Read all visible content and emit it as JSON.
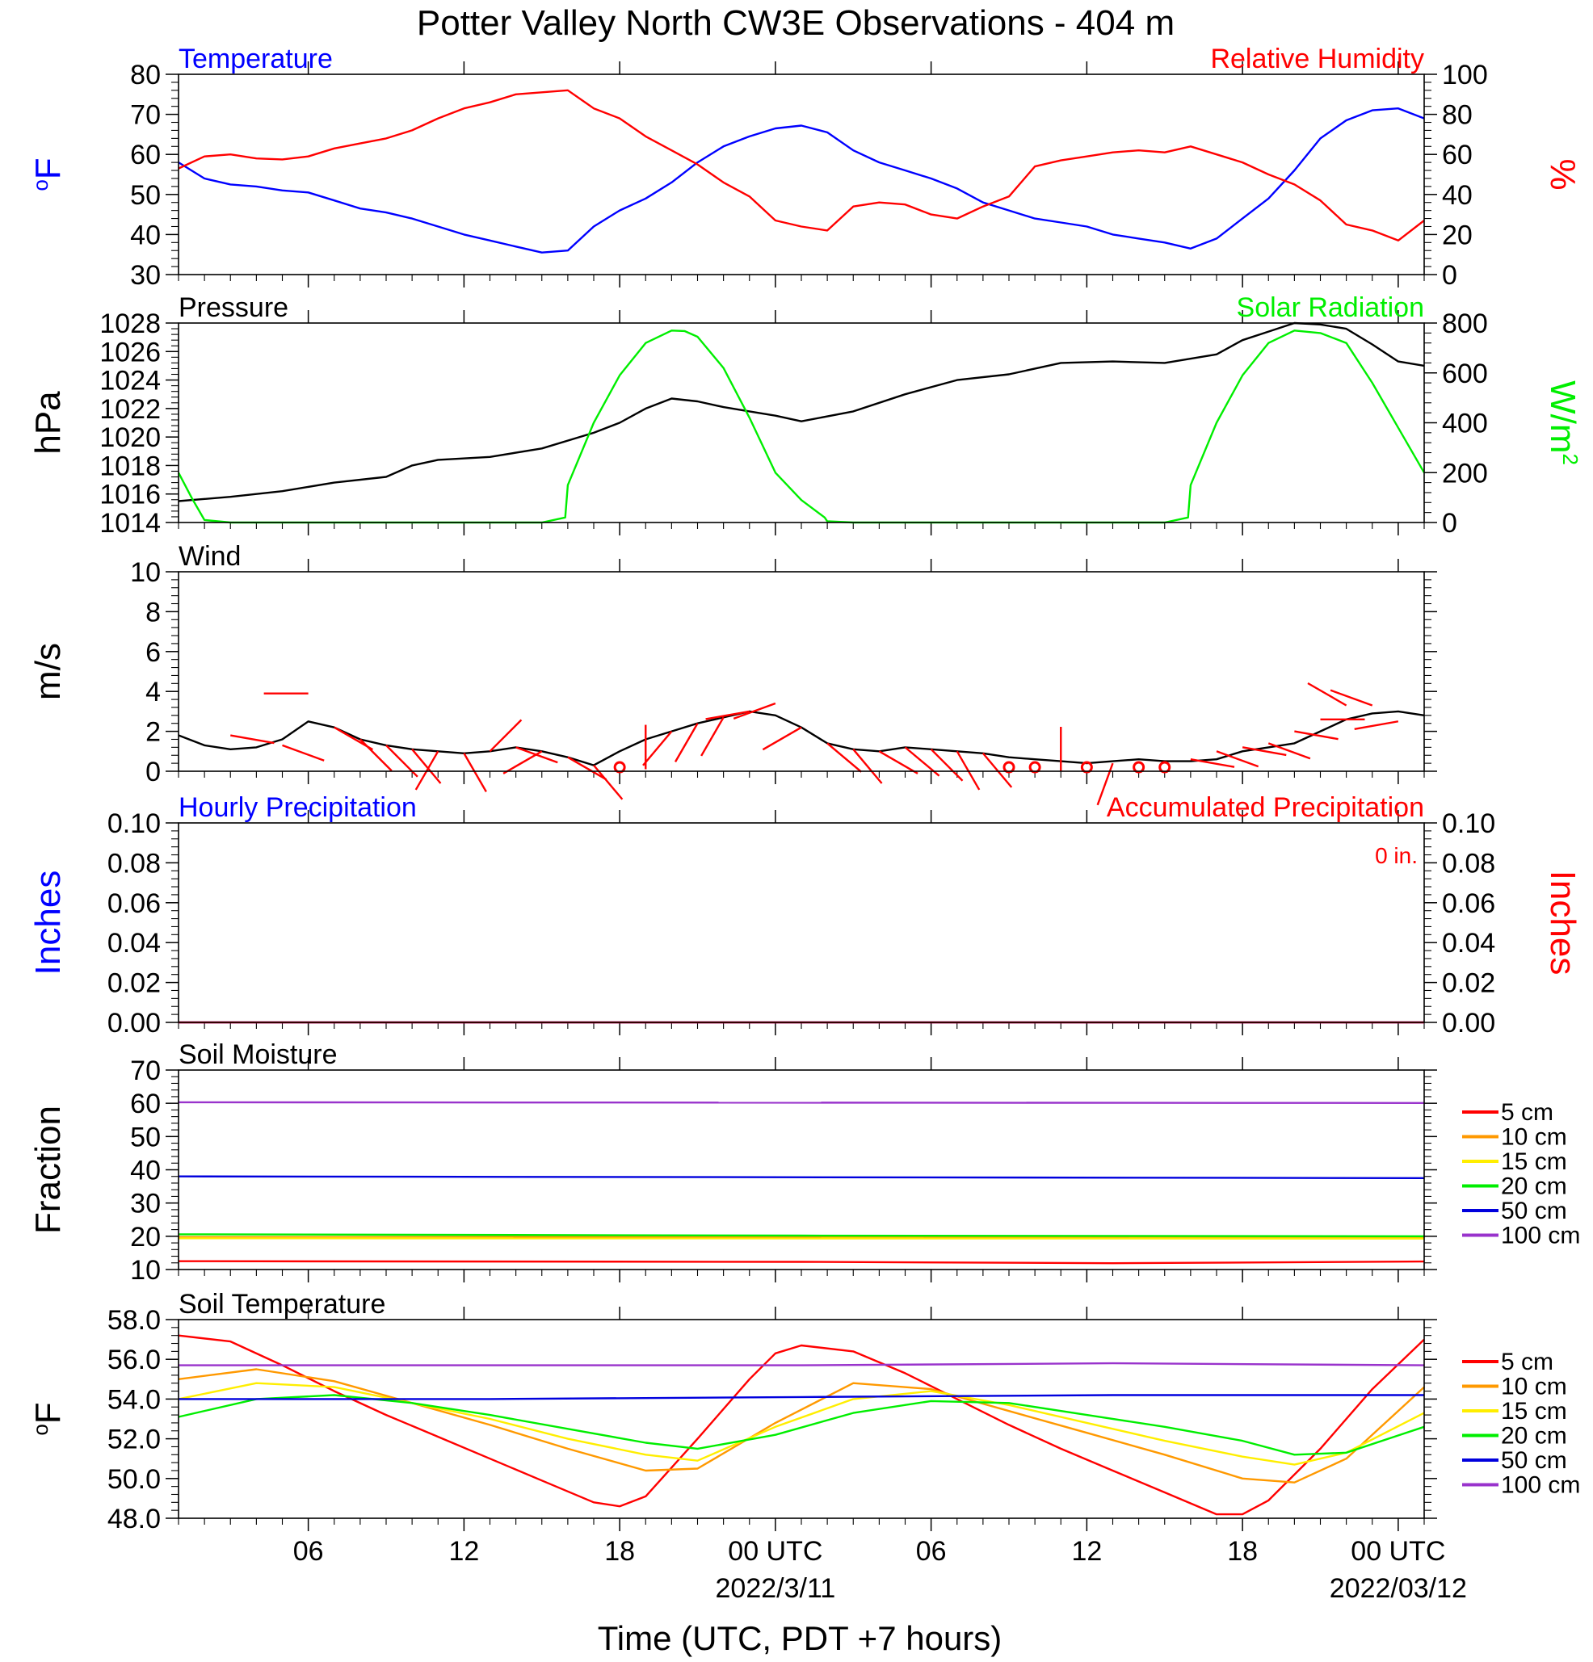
{
  "title": "Potter Valley North CW3E Observations - 404 m",
  "x_axis": {
    "label": "Time (UTC, PDT +7 hours)",
    "range_hours": [
      0,
      48
    ],
    "tick_hours": [
      5,
      11,
      17,
      23,
      29,
      35,
      41,
      47
    ],
    "tick_labels": [
      "06",
      "12",
      "18",
      "00 UTC",
      "06",
      "12",
      "18",
      "00 UTC"
    ],
    "date_labels": [
      {
        "hour": 23,
        "text": "2022/3/11"
      },
      {
        "hour": 47,
        "text": "2022/03/12"
      }
    ]
  },
  "chart_data": [
    {
      "type": "line",
      "panel": "temperature-humidity",
      "title_left": "Temperature",
      "title_right": "Relative Humidity",
      "ylabel_left": "oF",
      "ylabel_right": "%",
      "ylim_left": [
        30,
        80
      ],
      "ylim_right": [
        0,
        100
      ],
      "yticks_left": [
        "30",
        "40",
        "50",
        "60",
        "70",
        "80"
      ],
      "yticks_right": [
        "0",
        "20",
        "40",
        "60",
        "80",
        "100"
      ],
      "colors": {
        "left": "#0000ff",
        "right": "#ff0000"
      },
      "series": [
        {
          "name": "Temperature",
          "axis": "left",
          "color": "#0000ff",
          "x": [
            0,
            1,
            2,
            3,
            4,
            5,
            6,
            7,
            8,
            9,
            10,
            11,
            12,
            13,
            14,
            15,
            16,
            17,
            18,
            19,
            20,
            21,
            22,
            23,
            24,
            25,
            26,
            27,
            28,
            29,
            30,
            31,
            32,
            33,
            34,
            35,
            36,
            37,
            38,
            39,
            40,
            41,
            42,
            43,
            44,
            45,
            46,
            47,
            48
          ],
          "y": [
            58,
            54,
            52.5,
            52,
            51,
            50.5,
            48.5,
            46.5,
            45.5,
            44,
            42,
            40,
            38.5,
            37,
            35.5,
            36,
            42,
            46,
            49,
            53,
            58,
            62,
            64.5,
            66.5,
            67.2,
            65.5,
            61,
            58,
            56,
            54,
            51.5,
            48,
            46,
            44,
            43,
            42,
            40,
            39,
            38,
            36.5,
            39,
            44,
            49,
            56,
            64,
            68.5,
            71,
            71.5,
            69
          ]
        },
        {
          "name": "Relative Humidity",
          "axis": "right",
          "color": "#ff0000",
          "x": [
            0,
            1,
            2,
            3,
            4,
            5,
            6,
            7,
            8,
            9,
            10,
            11,
            12,
            13,
            14,
            15,
            16,
            17,
            18,
            19,
            20,
            21,
            22,
            23,
            24,
            25,
            26,
            27,
            28,
            29,
            30,
            31,
            32,
            33,
            34,
            35,
            36,
            37,
            38,
            39,
            40,
            41,
            42,
            43,
            44,
            45,
            46,
            47,
            48
          ],
          "y": [
            53,
            59,
            60,
            58,
            57.5,
            59,
            63,
            65.5,
            68,
            72,
            78,
            83,
            86,
            90,
            91,
            92,
            83,
            78,
            69,
            62,
            55,
            46,
            39,
            27,
            24,
            22,
            34,
            36,
            35,
            30,
            28,
            34,
            39,
            54,
            57,
            59,
            61,
            62,
            61,
            64,
            60,
            56,
            50,
            45,
            37,
            25,
            22,
            17,
            27
          ]
        }
      ]
    },
    {
      "type": "line",
      "panel": "pressure-solar",
      "title_left": "Pressure",
      "title_right": "Solar Radiation",
      "ylabel_left": "hPa",
      "ylabel_right": "W/m2",
      "ylim_left": [
        1014,
        1028
      ],
      "ylim_right": [
        0,
        800
      ],
      "yticks_left": [
        "1014",
        "1016",
        "1018",
        "1020",
        "1022",
        "1024",
        "1026",
        "1028"
      ],
      "yticks_right": [
        "0",
        "200",
        "400",
        "600",
        "800"
      ],
      "colors": {
        "left": "#000000",
        "right": "#00ee00"
      },
      "series": [
        {
          "name": "Pressure",
          "axis": "left",
          "color": "#000000",
          "x": [
            0,
            2,
            4,
            6,
            8,
            9,
            10,
            12,
            14,
            16,
            17,
            18,
            19,
            20,
            21,
            22,
            23,
            24,
            26,
            28,
            30,
            32,
            34,
            36,
            38,
            40,
            41,
            42,
            43,
            44,
            45,
            46,
            47,
            48
          ],
          "y": [
            1015.5,
            1015.8,
            1016.2,
            1016.8,
            1017.2,
            1018.0,
            1018.4,
            1018.6,
            1019.2,
            1020.3,
            1021.0,
            1022.0,
            1022.7,
            1022.5,
            1022.1,
            1021.8,
            1021.5,
            1021.1,
            1021.8,
            1023.0,
            1024.0,
            1024.4,
            1025.2,
            1025.3,
            1025.2,
            1025.8,
            1026.8,
            1027.4,
            1028.0,
            1027.9,
            1027.6,
            1026.5,
            1025.3,
            1025.0
          ]
        },
        {
          "name": "Solar Radiation",
          "axis": "right",
          "color": "#00ee00",
          "x": [
            0,
            0.5,
            1,
            2,
            14,
            14.9,
            15,
            16,
            17,
            18,
            19,
            19.5,
            20,
            21,
            22,
            23,
            24,
            24.9,
            25,
            26,
            38,
            38.9,
            39,
            40,
            41,
            42,
            43,
            44,
            45,
            46,
            47,
            48
          ],
          "y": [
            200,
            100,
            10,
            0,
            0,
            20,
            150,
            400,
            590,
            720,
            770,
            768,
            745,
            620,
            420,
            200,
            90,
            20,
            5,
            0,
            0,
            20,
            150,
            400,
            590,
            720,
            770,
            760,
            720,
            560,
            380,
            200
          ]
        }
      ]
    },
    {
      "type": "line",
      "panel": "wind",
      "title_left": "Wind",
      "ylabel_left": "m/s",
      "ylim_left": [
        0,
        10
      ],
      "yticks_left": [
        "0",
        "2",
        "4",
        "6",
        "8",
        "10"
      ],
      "series": [
        {
          "name": "Wind",
          "axis": "left",
          "color": "#000000",
          "x": [
            0,
            1,
            2,
            3,
            4,
            5,
            6,
            7,
            8,
            9,
            10,
            11,
            12,
            13,
            14,
            15,
            16,
            17,
            18,
            19,
            20,
            21,
            22,
            23,
            24,
            25,
            26,
            27,
            28,
            29,
            30,
            31,
            32,
            33,
            34,
            35,
            36,
            37,
            38,
            39,
            40,
            41,
            42,
            43,
            44,
            45,
            46,
            47,
            48
          ],
          "y": [
            1.8,
            1.3,
            1.1,
            1.2,
            1.6,
            2.5,
            2.2,
            1.6,
            1.3,
            1.1,
            1.0,
            0.9,
            1.0,
            1.2,
            1.0,
            0.7,
            0.3,
            1.0,
            1.6,
            2.0,
            2.4,
            2.7,
            3.0,
            2.8,
            2.2,
            1.4,
            1.1,
            1.0,
            1.2,
            1.1,
            1.0,
            0.9,
            0.7,
            0.6,
            0.5,
            0.4,
            0.5,
            0.6,
            0.5,
            0.5,
            0.6,
            1.0,
            1.2,
            1.4,
            2.0,
            2.6,
            2.9,
            3.0,
            2.8
          ]
        },
        {
          "name": "Wind barbs",
          "color": "#ff0000",
          "x": [
            2,
            4,
            5,
            6,
            7,
            8,
            9,
            10,
            11,
            12,
            13,
            14,
            15,
            16,
            17,
            18,
            19,
            20,
            21,
            22,
            23,
            24,
            25,
            26,
            27,
            28,
            29,
            30,
            31,
            32,
            33,
            34,
            35,
            36,
            37,
            38,
            39,
            40,
            41,
            42,
            43,
            44,
            45,
            46,
            47
          ],
          "y": [
            1.8,
            1.3,
            3.9,
            2.2,
            1.6,
            1.3,
            1.1,
            1.0,
            0.9,
            1.0,
            1.2,
            1.0,
            0.7,
            0.3,
            1.0,
            0.1,
            2.0,
            2.4,
            2.7,
            3.0,
            3.4,
            2.2,
            1.4,
            1.1,
            1.0,
            1.2,
            1.1,
            1.0,
            0.9,
            0.3,
            0.4,
            0.0,
            0.3,
            0.4,
            0.3,
            0.5,
            0.6,
            1.0,
            1.2,
            1.4,
            2.0,
            2.6,
            3.3,
            3.3,
            2.5
          ],
          "direction_deg": [
            100,
            110,
            270,
            120,
            135,
            135,
            140,
            210,
            150,
            45,
            110,
            240,
            120,
            140,
            80,
            0,
            220,
            210,
            210,
            260,
            250,
            240,
            130,
            140,
            120,
            130,
            135,
            150,
            140,
            0,
            0,
            0,
            0,
            200,
            0,
            90,
            100,
            110,
            100,
            110,
            100,
            90,
            300,
            290,
            260
          ],
          "calm_hours": [
            17,
            32,
            33,
            35,
            37,
            38
          ]
        }
      ]
    },
    {
      "type": "line",
      "panel": "precipitation",
      "title_left": "Hourly Precipitation",
      "title_right": "Accumulated Precipitation",
      "ylabel_left": "Inches",
      "ylabel_right": "Inches",
      "ylim_left": [
        0,
        0.1
      ],
      "ylim_right": [
        0,
        0.1
      ],
      "yticks_left": [
        "0.00",
        "0.02",
        "0.04",
        "0.06",
        "0.08",
        "0.10"
      ],
      "yticks_right": [
        "0.00",
        "0.02",
        "0.04",
        "0.06",
        "0.08",
        "0.10"
      ],
      "annotation": "0 in.",
      "colors": {
        "left": "#0000ff",
        "right": "#ff0000"
      },
      "series": [
        {
          "name": "Hourly Precipitation",
          "axis": "left",
          "color": "#0000ff",
          "x": [
            0,
            48
          ],
          "y": [
            0,
            0
          ]
        },
        {
          "name": "Accumulated Precipitation",
          "axis": "right",
          "color": "#ff0000",
          "x": [
            0,
            48
          ],
          "y": [
            0,
            0
          ]
        }
      ]
    },
    {
      "type": "line",
      "panel": "soil-moisture",
      "title_left": "Soil Moisture",
      "ylabel_left": "Fraction",
      "ylim_left": [
        10,
        70
      ],
      "yticks_left": [
        "10",
        "20",
        "30",
        "40",
        "50",
        "60",
        "70"
      ],
      "legend_position": "right",
      "series": [
        {
          "name": "5 cm",
          "color": "#ff0000",
          "x": [
            0,
            24,
            36,
            48
          ],
          "y": [
            12.5,
            12.3,
            11.9,
            12.4
          ]
        },
        {
          "name": "10 cm",
          "color": "#ff9900",
          "x": [
            0,
            48
          ],
          "y": [
            19.8,
            19.8
          ]
        },
        {
          "name": "15 cm",
          "color": "#ffee00",
          "x": [
            0,
            48
          ],
          "y": [
            19.4,
            19.3
          ]
        },
        {
          "name": "20 cm",
          "color": "#00ee00",
          "x": [
            0,
            24,
            48
          ],
          "y": [
            20.6,
            20.2,
            20.0
          ]
        },
        {
          "name": "50 cm",
          "color": "#0000dd",
          "x": [
            0,
            48
          ],
          "y": [
            38.0,
            37.5
          ]
        },
        {
          "name": "100 cm",
          "color": "#9933cc",
          "x": [
            0,
            48
          ],
          "y": [
            60.3,
            60.1
          ]
        }
      ]
    },
    {
      "type": "line",
      "panel": "soil-temperature",
      "title_left": "Soil Temperature",
      "ylabel_left": "oF",
      "ylim_left": [
        48,
        58
      ],
      "yticks_left": [
        "48.0",
        "50.0",
        "52.0",
        "54.0",
        "56.0",
        "58.0"
      ],
      "legend_position": "right",
      "series": [
        {
          "name": "5 cm",
          "color": "#ff0000",
          "x": [
            0,
            2,
            4,
            6,
            8,
            10,
            12,
            14,
            16,
            17,
            18,
            20,
            22,
            23,
            24,
            26,
            28,
            30,
            32,
            34,
            36,
            38,
            40,
            41,
            42,
            44,
            46,
            48
          ],
          "y": [
            57.2,
            56.9,
            55.7,
            54.4,
            53.2,
            52.1,
            51.0,
            49.9,
            48.8,
            48.6,
            49.1,
            52.0,
            55.0,
            56.3,
            56.7,
            56.4,
            55.3,
            54.0,
            52.7,
            51.5,
            50.4,
            49.3,
            48.2,
            48.2,
            48.9,
            51.5,
            54.5,
            57.0
          ]
        },
        {
          "name": "10 cm",
          "color": "#ff9900",
          "x": [
            0,
            3,
            6,
            9,
            12,
            15,
            18,
            20,
            23,
            26,
            29,
            32,
            35,
            38,
            41,
            43,
            45,
            48
          ],
          "y": [
            55.0,
            55.5,
            54.9,
            53.8,
            52.7,
            51.5,
            50.4,
            50.5,
            52.8,
            54.8,
            54.5,
            53.4,
            52.3,
            51.2,
            50.0,
            49.8,
            51.0,
            54.6
          ]
        },
        {
          "name": "15 cm",
          "color": "#ffee00",
          "x": [
            0,
            3,
            6,
            9,
            12,
            15,
            18,
            20,
            23,
            26,
            29,
            32,
            35,
            38,
            41,
            43,
            45,
            48
          ],
          "y": [
            54.0,
            54.8,
            54.6,
            53.8,
            53.0,
            52.0,
            51.2,
            50.9,
            52.6,
            54.0,
            54.4,
            53.7,
            52.8,
            51.9,
            51.1,
            50.7,
            51.3,
            53.3
          ]
        },
        {
          "name": "20 cm",
          "color": "#00ee00",
          "x": [
            0,
            3,
            6,
            9,
            12,
            15,
            18,
            20,
            23,
            26,
            29,
            32,
            35,
            38,
            41,
            43,
            45,
            48
          ],
          "y": [
            53.1,
            54.0,
            54.2,
            53.8,
            53.2,
            52.5,
            51.8,
            51.5,
            52.2,
            53.3,
            53.9,
            53.8,
            53.2,
            52.6,
            51.9,
            51.2,
            51.3,
            52.6
          ]
        },
        {
          "name": "50 cm",
          "color": "#0000dd",
          "x": [
            0,
            12,
            24,
            36,
            48
          ],
          "y": [
            54.0,
            54.0,
            54.1,
            54.2,
            54.2
          ]
        },
        {
          "name": "100 cm",
          "color": "#9933cc",
          "x": [
            0,
            12,
            24,
            36,
            48
          ],
          "y": [
            55.7,
            55.7,
            55.7,
            55.8,
            55.7
          ]
        }
      ]
    }
  ]
}
